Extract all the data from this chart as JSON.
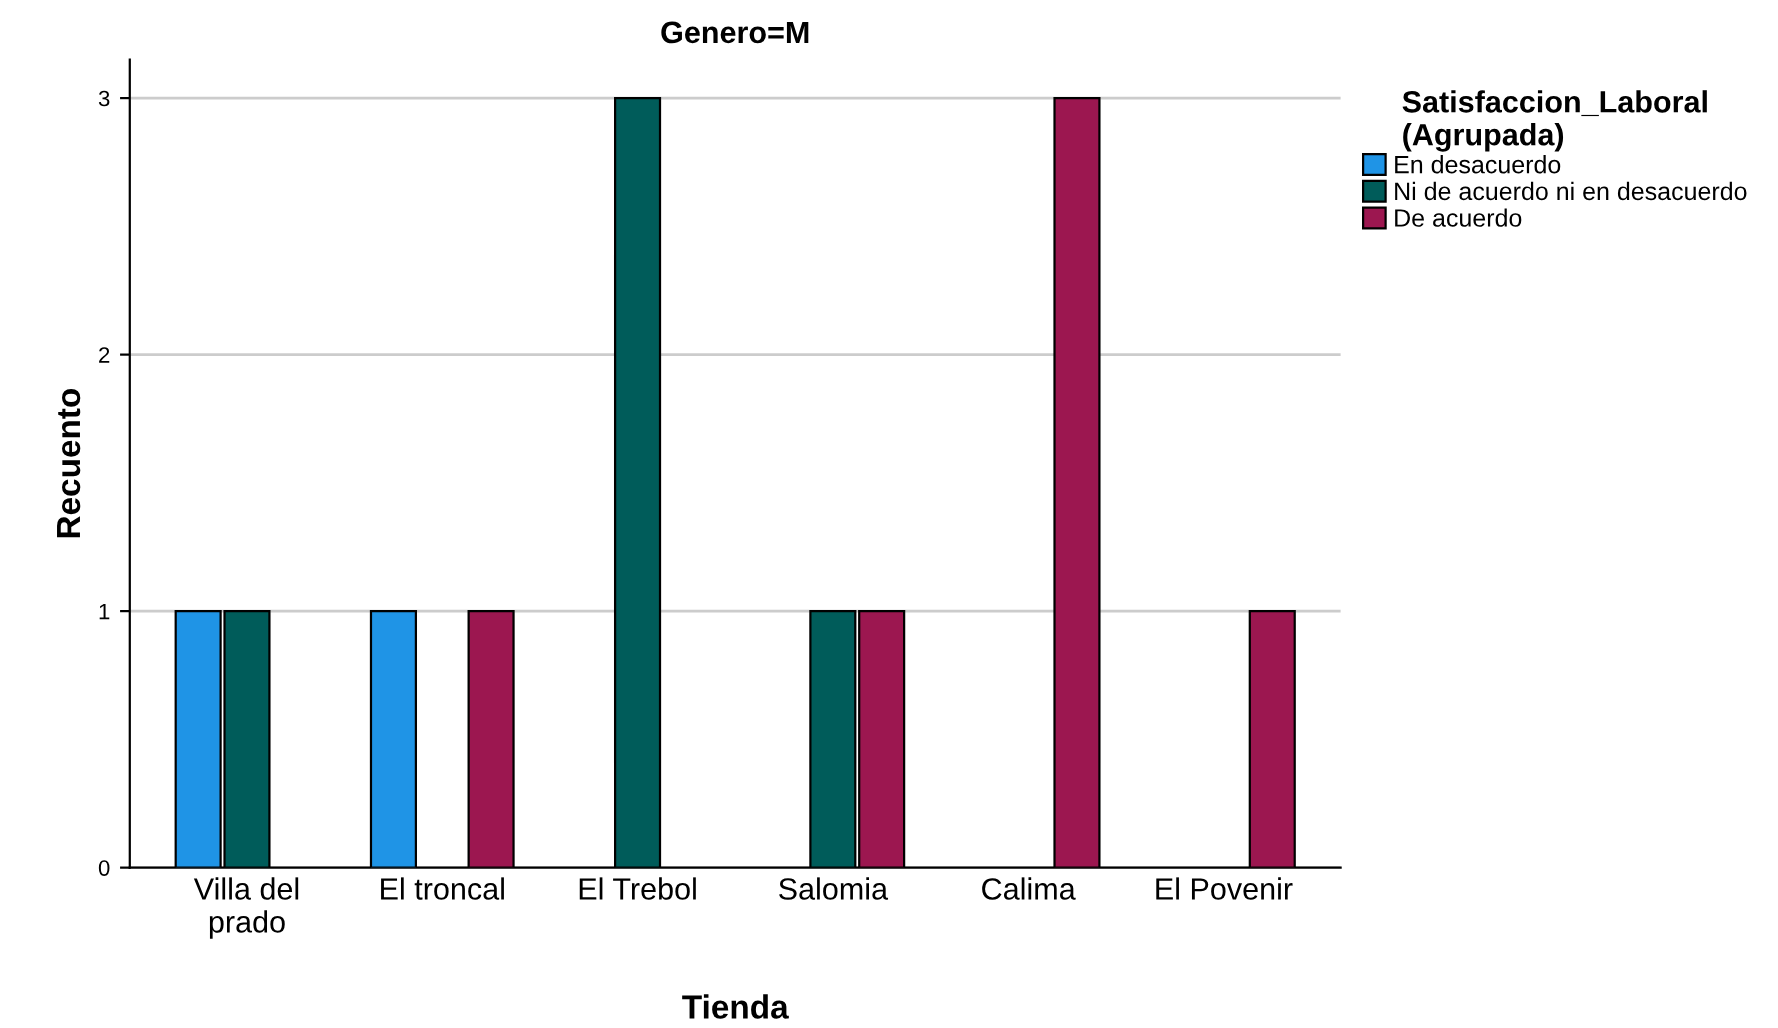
{
  "chart_data": {
    "type": "bar",
    "title": "Genero=M",
    "xlabel": "Tienda",
    "ylabel": "Recuento",
    "legend_title": "Satisfaccion_Laboral\n(Agrupada)",
    "categories": [
      "Villa del\nprado",
      "El troncal",
      "El Trebol",
      "Salomia",
      "Calima",
      "El Povenir"
    ],
    "series": [
      {
        "name": "En desacuerdo",
        "color": "#1f94e6",
        "values": [
          1,
          1,
          null,
          null,
          null,
          null
        ]
      },
      {
        "name": "Ni de acuerdo ni en desacuerdo",
        "color": "#005c5a",
        "values": [
          1,
          null,
          3,
          1,
          null,
          null
        ]
      },
      {
        "name": "De acuerdo",
        "color": "#9c1750",
        "values": [
          null,
          1,
          null,
          1,
          3,
          1
        ]
      }
    ],
    "ylim": [
      0,
      3.15
    ],
    "yticks": [
      0,
      1,
      2,
      3
    ],
    "grid": "y",
    "legend": "right"
  }
}
